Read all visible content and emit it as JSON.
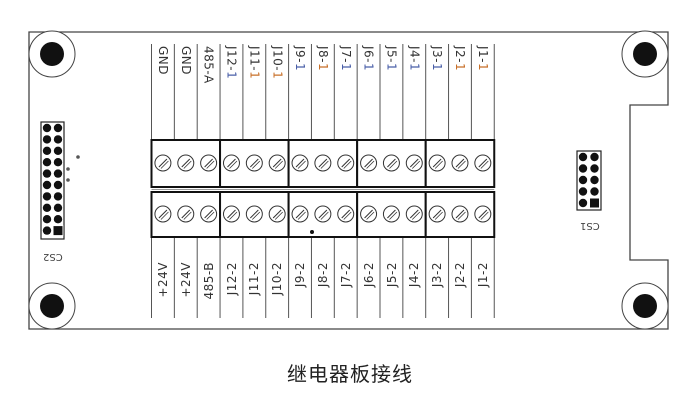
{
  "top_labels": [
    {
      "text": "GND",
      "suffix": "",
      "color": ""
    },
    {
      "text": "GND",
      "suffix": "",
      "color": ""
    },
    {
      "text": "485-A",
      "suffix": "",
      "color": ""
    },
    {
      "text": "J12-",
      "suffix": "1",
      "color": "#4a5fa8"
    },
    {
      "text": "J11-",
      "suffix": "1",
      "color": "#c8702a"
    },
    {
      "text": "J10-",
      "suffix": "1",
      "color": "#c8702a"
    },
    {
      "text": "J9-",
      "suffix": "1",
      "color": "#4a5fa8"
    },
    {
      "text": "J8-",
      "suffix": "1",
      "color": "#c8702a"
    },
    {
      "text": "J7-",
      "suffix": "1",
      "color": "#4a5fa8"
    },
    {
      "text": "J6-",
      "suffix": "1",
      "color": "#4a5fa8"
    },
    {
      "text": "J5-",
      "suffix": "1",
      "color": "#4a5fa8"
    },
    {
      "text": "J4-",
      "suffix": "1",
      "color": "#4a5fa8"
    },
    {
      "text": "J3-",
      "suffix": "1",
      "color": "#4a5fa8"
    },
    {
      "text": "J2-",
      "suffix": "1",
      "color": "#c8702a"
    },
    {
      "text": "J1-",
      "suffix": "1",
      "color": "#c8702a"
    }
  ],
  "bottom_labels": [
    "+24V",
    "+24V",
    "485-B",
    "J12-2",
    "J11-2",
    "J10-2",
    "J9-2",
    "J8-2",
    "J7-2",
    "J6-2",
    "J5-2",
    "J4-2",
    "J3-2",
    "J2-2",
    "J1-2"
  ],
  "connectors": {
    "left": "CS2",
    "right": "CS1"
  },
  "caption": "继电器板接线"
}
